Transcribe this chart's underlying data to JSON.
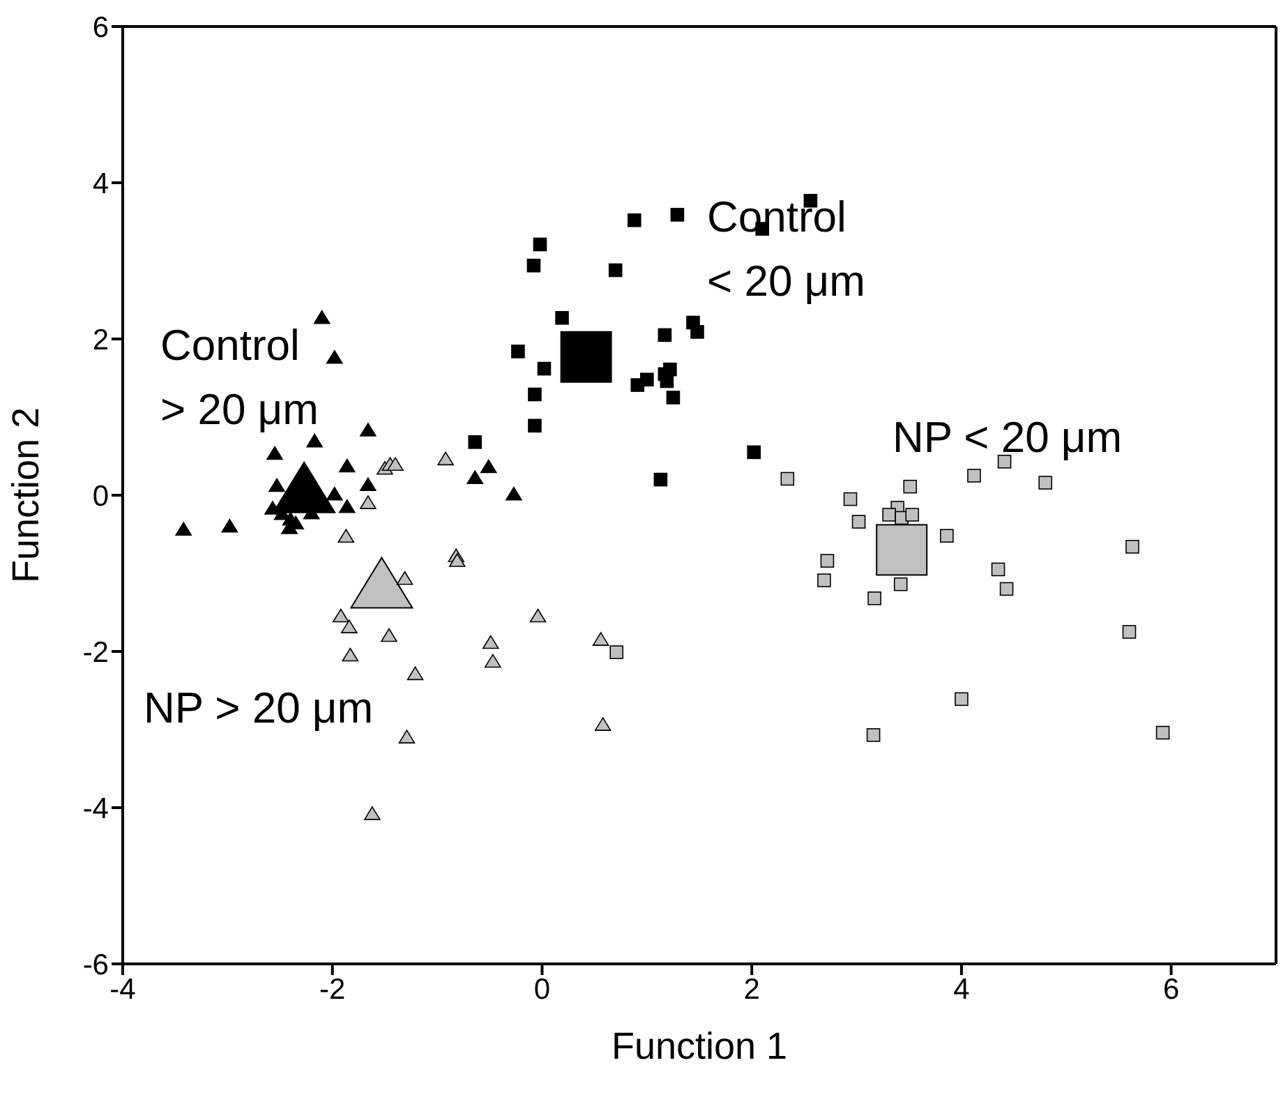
{
  "chart_data": {
    "type": "scatter",
    "xlabel": "Function 1",
    "ylabel": "Function 2",
    "xlim": [
      -4,
      7
    ],
    "xticks": [
      -4,
      -2,
      0,
      2,
      4,
      6
    ],
    "ylim": [
      -6,
      6
    ],
    "yticks": [
      -6,
      -4,
      -2,
      0,
      2,
      4,
      6
    ],
    "legend": false,
    "series": [
      {
        "marker": "triangle",
        "color": "#000000",
        "x": [
          -2.27
        ],
        "values": [
          0.1
        ]
      },
      {
        "marker": "triangle",
        "color": "#c0c0c0",
        "x": [
          -1.53
        ],
        "values": [
          -1.12
        ]
      },
      {
        "marker": "square",
        "color": "#000000",
        "x": [
          0.42
        ],
        "values": [
          1.77
        ]
      },
      {
        "marker": "square",
        "color": "#c0c0c0",
        "x": [
          3.43
        ],
        "values": [
          -0.7
        ]
      },
      {
        "marker": "triangle",
        "color": "#000000",
        "x": [
          -2.1,
          -1.98,
          -1.66,
          -2.17,
          -2.55,
          -1.86,
          -1.66,
          -2.53,
          -1.98,
          -1.86,
          -2.57,
          -2.48,
          -2.41,
          -3.42,
          -2.98,
          -0.64,
          -0.51,
          -0.27,
          -2.35,
          -2.2,
          -2.4
        ],
        "values": [
          2.28,
          1.77,
          0.84,
          0.7,
          0.54,
          0.38,
          0.14,
          0.13,
          0.02,
          -0.14,
          -0.16,
          -0.23,
          -0.41,
          -0.43,
          -0.39,
          0.23,
          0.37,
          0.02,
          -0.35,
          -0.22,
          -0.3
        ]
      },
      {
        "marker": "triangle",
        "color": "#c0c0c0",
        "x": [
          -1.5,
          -1.45,
          -1.4,
          -0.92,
          -1.66,
          -1.87,
          -0.82,
          -0.81,
          -1.31,
          -0.04,
          -1.92,
          -1.84,
          -1.46,
          -0.49,
          -0.47,
          0.56,
          -1.83,
          -1.21,
          0.58,
          -1.29,
          -1.62
        ],
        "values": [
          0.35,
          0.4,
          0.4,
          0.47,
          -0.09,
          -0.52,
          -0.77,
          -0.83,
          -1.06,
          -1.54,
          -1.54,
          -1.68,
          -1.79,
          -1.88,
          -2.12,
          -1.84,
          -2.04,
          -2.28,
          -2.93,
          -3.09,
          -4.07
        ]
      },
      {
        "marker": "square",
        "color": "#000000",
        "x": [
          1.29,
          0.88,
          2.1,
          -0.02,
          -0.08,
          0.7,
          0.19,
          1.44,
          1.48,
          1.17,
          -0.23,
          0.02,
          1.22,
          1.17,
          1.19,
          1.0,
          0.91,
          -0.07,
          1.25,
          -0.07,
          -0.64,
          2.02,
          1.13,
          2.56
        ],
        "values": [
          3.59,
          3.52,
          3.41,
          3.21,
          2.94,
          2.88,
          2.27,
          2.21,
          2.09,
          2.05,
          1.84,
          1.62,
          1.61,
          1.55,
          1.46,
          1.48,
          1.41,
          1.29,
          1.25,
          0.89,
          0.68,
          0.55,
          0.2,
          3.77
        ]
      },
      {
        "marker": "square",
        "color": "#c0c0c0",
        "x": [
          2.34,
          2.94,
          3.02,
          3.39,
          3.31,
          3.43,
          3.53,
          3.51,
          4.12,
          4.41,
          4.8,
          3.86,
          2.72,
          2.69,
          3.42,
          3.17,
          4.35,
          4.43,
          5.63,
          5.6,
          4.0,
          3.16,
          5.92
        ],
        "values": [
          0.21,
          -0.05,
          -0.34,
          -0.16,
          -0.25,
          -0.29,
          -0.25,
          0.11,
          0.25,
          0.43,
          0.16,
          -0.52,
          -0.84,
          -1.09,
          -1.14,
          -1.32,
          -0.95,
          -1.2,
          -0.66,
          -1.75,
          -2.61,
          -3.07,
          -3.04
        ]
      },
      {
        "marker": "square",
        "color": "#c0c0c0",
        "x": [
          0.71
        ],
        "values": [
          -2.01
        ]
      }
    ],
    "annotations": [
      "Control\n> 20 μm",
      "Control\n< 20 μm",
      "NP < 20 μm",
      "NP > 20 μm"
    ]
  }
}
